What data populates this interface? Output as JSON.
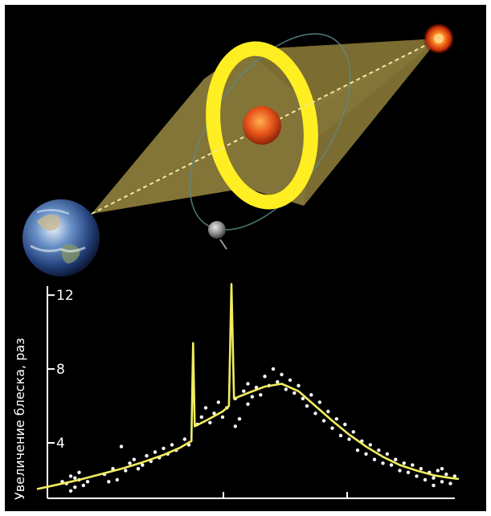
{
  "figure": {
    "type": "gravitational-microlensing-diagram",
    "colors": {
      "background": "#000000",
      "einstein_ring": "#ffee22",
      "light_cone": "#8a7a3a",
      "sightline": "#f2e8a0",
      "orbit": "#5a8a8a",
      "lens_star": "#e8541a",
      "source_star": "#ff6a1a",
      "curve": "#f0ec60",
      "points": "#ffffff"
    },
    "objects": [
      {
        "name": "earth",
        "icon": "earth-globe"
      },
      {
        "name": "lens-star",
        "icon": "orange-star"
      },
      {
        "name": "source-star",
        "icon": "distant-star"
      },
      {
        "name": "planet",
        "icon": "grey-planet"
      }
    ]
  },
  "chart_data": {
    "type": "scatter",
    "ylabel": "Увеличение блеска, раз",
    "yticks": [
      4,
      8,
      12
    ],
    "ylim": [
      1,
      12.4
    ],
    "xlim": [
      0,
      1
    ],
    "curve": [
      [
        0.0,
        1.5
      ],
      [
        0.05,
        1.75
      ],
      [
        0.1,
        2.0
      ],
      [
        0.15,
        2.3
      ],
      [
        0.2,
        2.6
      ],
      [
        0.25,
        2.95
      ],
      [
        0.3,
        3.35
      ],
      [
        0.34,
        3.75
      ],
      [
        0.366,
        4.1
      ],
      [
        0.37,
        9.4
      ],
      [
        0.374,
        4.9
      ],
      [
        0.4,
        5.2
      ],
      [
        0.44,
        5.7
      ],
      [
        0.455,
        6.0
      ],
      [
        0.461,
        12.6
      ],
      [
        0.467,
        6.4
      ],
      [
        0.5,
        6.7
      ],
      [
        0.54,
        7.05
      ],
      [
        0.58,
        7.2
      ],
      [
        0.62,
        6.8
      ],
      [
        0.66,
        6.0
      ],
      [
        0.7,
        5.2
      ],
      [
        0.74,
        4.45
      ],
      [
        0.78,
        3.8
      ],
      [
        0.82,
        3.25
      ],
      [
        0.86,
        2.8
      ],
      [
        0.9,
        2.5
      ],
      [
        0.94,
        2.25
      ],
      [
        0.98,
        2.1
      ],
      [
        1.0,
        2.05
      ]
    ],
    "points": [
      [
        0.07,
        1.8
      ],
      [
        0.08,
        2.2
      ],
      [
        0.09,
        1.6
      ],
      [
        0.1,
        2.0
      ],
      [
        0.11,
        1.7
      ],
      [
        0.08,
        1.4
      ],
      [
        0.1,
        2.4
      ],
      [
        0.12,
        1.9
      ],
      [
        0.06,
        1.9
      ],
      [
        0.09,
        2.1
      ],
      [
        0.16,
        2.3
      ],
      [
        0.17,
        1.9
      ],
      [
        0.18,
        2.6
      ],
      [
        0.19,
        2.0
      ],
      [
        0.2,
        3.8
      ],
      [
        0.21,
        2.5
      ],
      [
        0.22,
        2.9
      ],
      [
        0.23,
        3.1
      ],
      [
        0.24,
        2.6
      ],
      [
        0.25,
        2.8
      ],
      [
        0.26,
        3.3
      ],
      [
        0.27,
        3.0
      ],
      [
        0.28,
        3.5
      ],
      [
        0.29,
        3.2
      ],
      [
        0.3,
        3.7
      ],
      [
        0.31,
        3.4
      ],
      [
        0.32,
        3.9
      ],
      [
        0.33,
        3.6
      ],
      [
        0.35,
        4.2
      ],
      [
        0.36,
        3.9
      ],
      [
        0.38,
        5.0
      ],
      [
        0.39,
        5.4
      ],
      [
        0.4,
        5.9
      ],
      [
        0.41,
        5.1
      ],
      [
        0.42,
        5.6
      ],
      [
        0.43,
        6.2
      ],
      [
        0.44,
        5.4
      ],
      [
        0.45,
        5.9
      ],
      [
        0.47,
        4.9
      ],
      [
        0.47,
        6.4
      ],
      [
        0.48,
        5.3
      ],
      [
        0.49,
        6.8
      ],
      [
        0.5,
        6.1
      ],
      [
        0.5,
        7.2
      ],
      [
        0.51,
        6.5
      ],
      [
        0.52,
        7.0
      ],
      [
        0.53,
        6.6
      ],
      [
        0.54,
        7.6
      ],
      [
        0.55,
        7.1
      ],
      [
        0.56,
        8.0
      ],
      [
        0.57,
        7.3
      ],
      [
        0.58,
        7.7
      ],
      [
        0.59,
        6.9
      ],
      [
        0.6,
        7.4
      ],
      [
        0.61,
        6.7
      ],
      [
        0.62,
        7.1
      ],
      [
        0.63,
        6.4
      ],
      [
        0.64,
        6.0
      ],
      [
        0.65,
        6.6
      ],
      [
        0.66,
        5.6
      ],
      [
        0.67,
        6.2
      ],
      [
        0.68,
        5.2
      ],
      [
        0.69,
        5.7
      ],
      [
        0.7,
        4.8
      ],
      [
        0.71,
        5.3
      ],
      [
        0.72,
        4.4
      ],
      [
        0.73,
        5.0
      ],
      [
        0.74,
        4.2
      ],
      [
        0.75,
        4.6
      ],
      [
        0.76,
        3.6
      ],
      [
        0.77,
        4.1
      ],
      [
        0.78,
        3.4
      ],
      [
        0.79,
        3.9
      ],
      [
        0.8,
        3.1
      ],
      [
        0.81,
        3.6
      ],
      [
        0.82,
        2.9
      ],
      [
        0.83,
        3.4
      ],
      [
        0.84,
        2.8
      ],
      [
        0.85,
        3.1
      ],
      [
        0.86,
        2.5
      ],
      [
        0.87,
        2.9
      ],
      [
        0.88,
        2.4
      ],
      [
        0.89,
        2.8
      ],
      [
        0.9,
        2.2
      ],
      [
        0.91,
        2.6
      ],
      [
        0.92,
        2.0
      ],
      [
        0.93,
        2.4
      ],
      [
        0.94,
        2.1
      ],
      [
        0.95,
        2.5
      ],
      [
        0.96,
        1.9
      ],
      [
        0.97,
        2.3
      ],
      [
        0.98,
        1.8
      ],
      [
        0.99,
        2.2
      ],
      [
        0.94,
        1.7
      ],
      [
        0.96,
        2.6
      ]
    ]
  }
}
